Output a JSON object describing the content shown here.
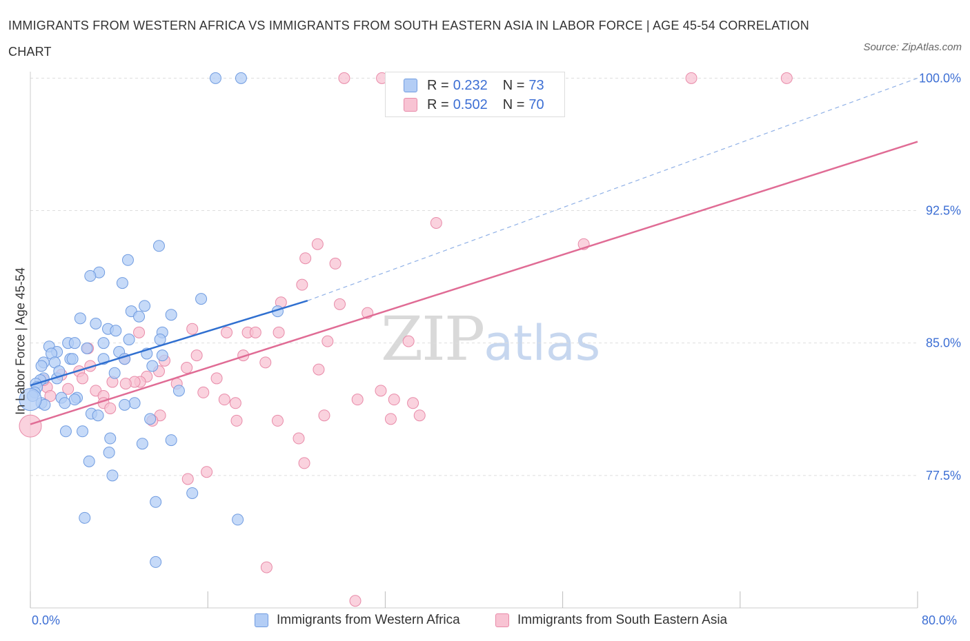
{
  "title": "IMMIGRANTS FROM WESTERN AFRICA VS IMMIGRANTS FROM SOUTH EASTERN ASIA IN LABOR FORCE | AGE 45-54 CORRELATION CHART",
  "source": "Source: ZipAtlas.com",
  "watermark": {
    "zip": "ZIP",
    "atlas": "atlas"
  },
  "legend": {
    "r_label": "R =",
    "n_label": "N =",
    "rows": [
      {
        "r": "0.232",
        "n": "73"
      },
      {
        "r": "0.502",
        "n": "70"
      }
    ]
  },
  "x_axis": {
    "min_label": "0.0%",
    "max_label": "80.0%"
  },
  "colors": {
    "blue_fill": "#b3cdf5",
    "blue_stroke": "#6f9be0",
    "blue_line": "#2f6fd0",
    "pink_fill": "#f8c3d3",
    "pink_stroke": "#e88aa8",
    "pink_line": "#e06c95",
    "tick_label": "#3d6fd4",
    "grid": "#dddddd"
  },
  "chart_data": {
    "type": "scatter",
    "title": "IMMIGRANTS FROM WESTERN AFRICA VS IMMIGRANTS FROM SOUTH EASTERN ASIA IN LABOR FORCE | AGE 45-54 CORRELATION CHART",
    "xlabel": "",
    "ylabel": "In Labor Force | Age 45-54",
    "xlim": [
      0,
      80
    ],
    "ylim": [
      70.0,
      100.6
    ],
    "yticks": [
      77.5,
      85.0,
      92.5,
      100.0
    ],
    "ytick_labels": [
      "77.5%",
      "85.0%",
      "92.5%",
      "100.0%"
    ],
    "grid": true,
    "legend_position": "bottom",
    "series": [
      {
        "name": "Immigrants from Western Africa",
        "color": "blue",
        "r": 0.232,
        "n": 73,
        "trend": {
          "x": [
            0,
            25
          ],
          "y": [
            82.6,
            87.4
          ],
          "dashed_extension_to": [
            80,
            100.0
          ]
        },
        "points": [
          [
            16.7,
            100.0
          ],
          [
            19.0,
            100.0
          ],
          [
            11.6,
            90.5
          ],
          [
            8.8,
            89.7
          ],
          [
            6.2,
            89.0
          ],
          [
            5.4,
            88.8
          ],
          [
            8.3,
            88.4
          ],
          [
            15.4,
            87.5
          ],
          [
            10.3,
            87.1
          ],
          [
            9.1,
            86.8
          ],
          [
            9.8,
            86.5
          ],
          [
            12.7,
            86.6
          ],
          [
            22.3,
            86.8
          ],
          [
            4.5,
            86.4
          ],
          [
            5.9,
            86.1
          ],
          [
            7.0,
            85.8
          ],
          [
            7.7,
            85.7
          ],
          [
            11.9,
            85.6
          ],
          [
            8.9,
            85.2
          ],
          [
            11.7,
            85.2
          ],
          [
            3.4,
            85.0
          ],
          [
            4.0,
            85.0
          ],
          [
            6.6,
            85.0
          ],
          [
            1.7,
            84.8
          ],
          [
            5.1,
            84.7
          ],
          [
            10.5,
            84.4
          ],
          [
            8.0,
            84.5
          ],
          [
            2.4,
            84.5
          ],
          [
            1.9,
            84.4
          ],
          [
            6.6,
            84.1
          ],
          [
            8.5,
            84.1
          ],
          [
            3.6,
            84.1
          ],
          [
            3.8,
            84.1
          ],
          [
            11.9,
            84.3
          ],
          [
            2.2,
            83.9
          ],
          [
            1.2,
            83.9
          ],
          [
            1.0,
            83.7
          ],
          [
            11.0,
            83.7
          ],
          [
            1.2,
            83.0
          ],
          [
            2.4,
            83.0
          ],
          [
            0.9,
            82.9
          ],
          [
            7.6,
            83.3
          ],
          [
            0.5,
            82.7
          ],
          [
            0.6,
            82.5
          ],
          [
            2.6,
            83.4
          ],
          [
            13.4,
            82.3
          ],
          [
            0.4,
            82.2
          ],
          [
            0.2,
            82.0
          ],
          [
            2.8,
            81.9
          ],
          [
            4.2,
            81.9
          ],
          [
            1.0,
            81.6
          ],
          [
            1.3,
            81.5
          ],
          [
            4.0,
            81.8
          ],
          [
            9.4,
            81.6
          ],
          [
            8.5,
            81.5
          ],
          [
            3.1,
            81.6
          ],
          [
            5.5,
            81.0
          ],
          [
            6.1,
            80.9
          ],
          [
            10.8,
            80.7
          ],
          [
            3.2,
            80.0
          ],
          [
            4.7,
            80.0
          ],
          [
            7.2,
            79.6
          ],
          [
            10.1,
            79.3
          ],
          [
            12.7,
            79.5
          ],
          [
            7.1,
            78.8
          ],
          [
            5.3,
            78.3
          ],
          [
            7.4,
            77.5
          ],
          [
            14.6,
            76.5
          ],
          [
            11.3,
            76.0
          ],
          [
            4.9,
            75.1
          ],
          [
            18.7,
            75.0
          ],
          [
            11.3,
            72.6
          ],
          [
            0.0,
            81.8
          ]
        ]
      },
      {
        "name": "Immigrants from South Eastern Asia",
        "color": "pink",
        "r": 0.502,
        "n": 70,
        "trend": {
          "x": [
            0,
            80
          ],
          "y": [
            80.4,
            96.4
          ]
        },
        "points": [
          [
            28.3,
            100.0
          ],
          [
            31.7,
            100.0
          ],
          [
            59.6,
            100.0
          ],
          [
            68.2,
            100.0
          ],
          [
            36.6,
            91.8
          ],
          [
            49.9,
            90.6
          ],
          [
            25.9,
            90.6
          ],
          [
            24.8,
            89.8
          ],
          [
            27.5,
            89.5
          ],
          [
            24.5,
            88.3
          ],
          [
            22.6,
            87.3
          ],
          [
            27.9,
            87.2
          ],
          [
            30.4,
            86.7
          ],
          [
            14.6,
            85.8
          ],
          [
            17.7,
            85.6
          ],
          [
            22.4,
            85.6
          ],
          [
            19.6,
            85.6
          ],
          [
            20.3,
            85.6
          ],
          [
            9.8,
            85.6
          ],
          [
            26.8,
            85.1
          ],
          [
            34.1,
            85.1
          ],
          [
            5.2,
            84.7
          ],
          [
            15.0,
            84.3
          ],
          [
            19.2,
            84.3
          ],
          [
            8.5,
            84.1
          ],
          [
            12.1,
            84.0
          ],
          [
            21.2,
            83.9
          ],
          [
            5.4,
            83.7
          ],
          [
            14.1,
            83.6
          ],
          [
            26.0,
            83.5
          ],
          [
            4.4,
            83.4
          ],
          [
            11.6,
            83.4
          ],
          [
            2.8,
            83.2
          ],
          [
            4.7,
            83.0
          ],
          [
            10.5,
            83.1
          ],
          [
            16.8,
            83.0
          ],
          [
            9.9,
            82.8
          ],
          [
            7.4,
            82.8
          ],
          [
            9.4,
            82.8
          ],
          [
            8.6,
            82.7
          ],
          [
            13.2,
            82.7
          ],
          [
            3.4,
            82.4
          ],
          [
            5.9,
            82.3
          ],
          [
            1.5,
            82.5
          ],
          [
            1.8,
            82.0
          ],
          [
            6.6,
            82.0
          ],
          [
            15.6,
            82.2
          ],
          [
            31.6,
            82.3
          ],
          [
            29.5,
            81.8
          ],
          [
            32.8,
            81.8
          ],
          [
            17.5,
            81.8
          ],
          [
            18.5,
            81.6
          ],
          [
            34.5,
            81.6
          ],
          [
            6.6,
            81.6
          ],
          [
            7.2,
            81.3
          ],
          [
            11.7,
            80.9
          ],
          [
            11.0,
            80.6
          ],
          [
            26.5,
            80.9
          ],
          [
            35.1,
            80.9
          ],
          [
            18.6,
            80.6
          ],
          [
            22.3,
            80.6
          ],
          [
            32.5,
            80.7
          ],
          [
            24.2,
            79.6
          ],
          [
            24.7,
            78.2
          ],
          [
            15.9,
            77.7
          ],
          [
            14.2,
            77.3
          ],
          [
            21.3,
            72.3
          ],
          [
            29.3,
            70.4
          ],
          [
            1.2,
            82.9
          ],
          [
            0.0,
            80.3
          ]
        ]
      }
    ]
  }
}
